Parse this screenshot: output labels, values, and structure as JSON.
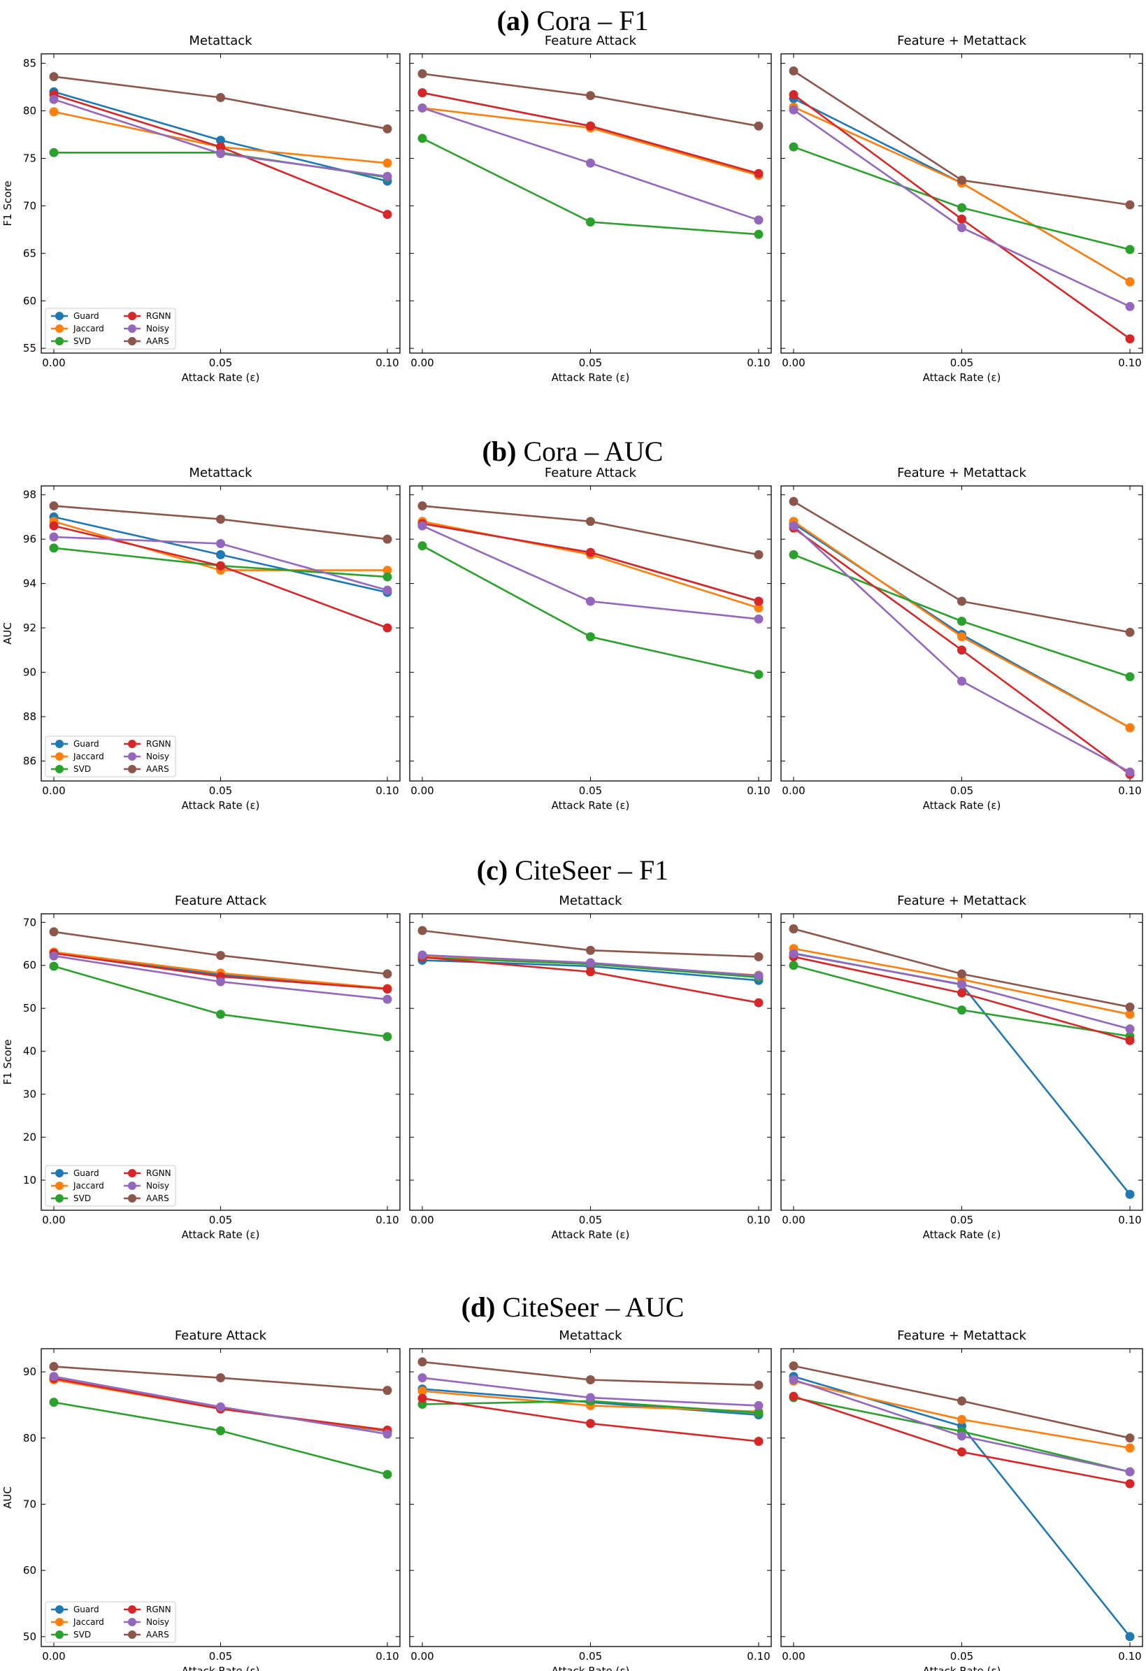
{
  "colors": {
    "Guard": "#1f77b4",
    "Jaccard": "#ff7f0e",
    "SVD": "#2ca02c",
    "RGNN": "#d62728",
    "Noisy": "#9467bd",
    "AARS": "#8c564b"
  },
  "legend_order": [
    "Guard",
    "Jaccard",
    "SVD",
    "RGNN",
    "Noisy",
    "AARS"
  ],
  "chart_data": [
    {
      "section": "a",
      "tag": "(a)",
      "title": "Cora – F1",
      "ylabel": "F1 Score",
      "ylim": [
        54.5,
        86
      ],
      "yticks": [
        55,
        60,
        65,
        70,
        75,
        80,
        85
      ],
      "xlabel": "Attack Rate (ε)",
      "x": [
        0.0,
        0.05,
        0.1
      ],
      "xtick_labels": [
        "0.00",
        "0.05",
        "0.10"
      ],
      "panels": [
        {
          "title": "Metattack",
          "type": "line",
          "series": [
            {
              "name": "Guard",
              "values": [
                82.0,
                76.9,
                72.6
              ]
            },
            {
              "name": "Jaccard",
              "values": [
                79.9,
                76.2,
                74.5
              ]
            },
            {
              "name": "SVD",
              "values": [
                75.6,
                75.6,
                73.0
              ]
            },
            {
              "name": "RGNN",
              "values": [
                81.7,
                76.2,
                69.1
              ]
            },
            {
              "name": "Noisy",
              "values": [
                81.2,
                75.5,
                73.1
              ]
            },
            {
              "name": "AARS",
              "values": [
                83.6,
                81.4,
                78.1
              ]
            }
          ]
        },
        {
          "title": "Feature Attack",
          "type": "line",
          "series": [
            {
              "name": "Guard",
              "values": [
                81.9,
                78.4,
                73.3
              ]
            },
            {
              "name": "Jaccard",
              "values": [
                80.3,
                78.2,
                73.2
              ]
            },
            {
              "name": "SVD",
              "values": [
                77.1,
                68.3,
                67.0
              ]
            },
            {
              "name": "RGNN",
              "values": [
                81.9,
                78.4,
                73.4
              ]
            },
            {
              "name": "Noisy",
              "values": [
                80.3,
                74.5,
                68.5
              ]
            },
            {
              "name": "AARS",
              "values": [
                83.9,
                81.6,
                78.4
              ]
            }
          ]
        },
        {
          "title": "Feature + Metattack",
          "type": "line",
          "series": [
            {
              "name": "Guard",
              "values": [
                81.3,
                72.4,
                62.0
              ]
            },
            {
              "name": "Jaccard",
              "values": [
                80.4,
                72.4,
                62.0
              ]
            },
            {
              "name": "SVD",
              "values": [
                76.2,
                69.8,
                65.4
              ]
            },
            {
              "name": "RGNN",
              "values": [
                81.7,
                68.6,
                56.0
              ]
            },
            {
              "name": "Noisy",
              "values": [
                80.1,
                67.7,
                59.4
              ]
            },
            {
              "name": "AARS",
              "values": [
                84.2,
                72.7,
                70.1
              ]
            }
          ]
        }
      ]
    },
    {
      "section": "b",
      "tag": "(b)",
      "title": "Cora – AUC",
      "ylabel": "AUC",
      "ylim": [
        85.1,
        98.4
      ],
      "yticks": [
        86,
        88,
        90,
        92,
        94,
        96,
        98
      ],
      "xlabel": "Attack Rate (ε)",
      "x": [
        0.0,
        0.05,
        0.1
      ],
      "xtick_labels": [
        "0.00",
        "0.05",
        "0.10"
      ],
      "panels": [
        {
          "title": "Metattack",
          "type": "line",
          "series": [
            {
              "name": "Guard",
              "values": [
                97.0,
                95.3,
                93.6
              ]
            },
            {
              "name": "Jaccard",
              "values": [
                96.8,
                94.6,
                94.6
              ]
            },
            {
              "name": "SVD",
              "values": [
                95.6,
                94.8,
                94.3
              ]
            },
            {
              "name": "RGNN",
              "values": [
                96.6,
                94.8,
                92.0
              ]
            },
            {
              "name": "Noisy",
              "values": [
                96.1,
                95.8,
                93.7
              ]
            },
            {
              "name": "AARS",
              "values": [
                97.5,
                96.9,
                96.0
              ]
            }
          ]
        },
        {
          "title": "Feature Attack",
          "type": "line",
          "series": [
            {
              "name": "Guard",
              "values": [
                96.7,
                95.4,
                93.2
              ]
            },
            {
              "name": "Jaccard",
              "values": [
                96.8,
                95.3,
                92.9
              ]
            },
            {
              "name": "SVD",
              "values": [
                95.7,
                91.6,
                89.9
              ]
            },
            {
              "name": "RGNN",
              "values": [
                96.7,
                95.4,
                93.2
              ]
            },
            {
              "name": "Noisy",
              "values": [
                96.6,
                93.2,
                92.4
              ]
            },
            {
              "name": "AARS",
              "values": [
                97.5,
                96.8,
                95.3
              ]
            }
          ]
        },
        {
          "title": "Feature + Metattack",
          "type": "line",
          "series": [
            {
              "name": "Guard",
              "values": [
                96.7,
                91.7,
                87.5
              ]
            },
            {
              "name": "Jaccard",
              "values": [
                96.8,
                91.6,
                87.5
              ]
            },
            {
              "name": "SVD",
              "values": [
                95.3,
                92.3,
                89.8
              ]
            },
            {
              "name": "RGNN",
              "values": [
                96.5,
                91.0,
                85.4
              ]
            },
            {
              "name": "Noisy",
              "values": [
                96.6,
                89.6,
                85.5
              ]
            },
            {
              "name": "AARS",
              "values": [
                97.7,
                93.2,
                91.8
              ]
            }
          ]
        }
      ]
    },
    {
      "section": "c",
      "tag": "(c)",
      "title": "CiteSeer – F1",
      "ylabel": "F1 Score",
      "ylim": [
        3,
        72
      ],
      "yticks": [
        10,
        20,
        30,
        40,
        50,
        60,
        70
      ],
      "xlabel": "Attack Rate (ε)",
      "x": [
        0.0,
        0.05,
        0.1
      ],
      "xtick_labels": [
        "0.00",
        "0.05",
        "0.10"
      ],
      "panels": [
        {
          "title": "Feature Attack",
          "type": "line",
          "series": [
            {
              "name": "Guard",
              "values": [
                62.8,
                57.8,
                54.5
              ]
            },
            {
              "name": "Jaccard",
              "values": [
                63.1,
                58.2,
                54.6
              ]
            },
            {
              "name": "SVD",
              "values": [
                59.8,
                48.6,
                43.4
              ]
            },
            {
              "name": "RGNN",
              "values": [
                62.8,
                57.4,
                54.5
              ]
            },
            {
              "name": "Noisy",
              "values": [
                62.2,
                56.2,
                52.1
              ]
            },
            {
              "name": "AARS",
              "values": [
                67.8,
                62.3,
                58.0
              ]
            }
          ]
        },
        {
          "title": "Metattack",
          "type": "line",
          "series": [
            {
              "name": "Guard",
              "values": [
                61.2,
                59.8,
                56.5
              ]
            },
            {
              "name": "Jaccard",
              "values": [
                62.0,
                60.3,
                57.7
              ]
            },
            {
              "name": "SVD",
              "values": [
                61.8,
                60.3,
                57.2
              ]
            },
            {
              "name": "RGNN",
              "values": [
                61.9,
                58.5,
                51.3
              ]
            },
            {
              "name": "Noisy",
              "values": [
                62.4,
                60.6,
                57.6
              ]
            },
            {
              "name": "AARS",
              "values": [
                68.1,
                63.5,
                62.0
              ]
            }
          ]
        },
        {
          "title": "Feature + Metattack",
          "type": "line",
          "series": [
            {
              "name": "Guard",
              "values": [
                62.8,
                55.5,
                6.7
              ]
            },
            {
              "name": "Jaccard",
              "values": [
                63.9,
                56.7,
                48.6
              ]
            },
            {
              "name": "SVD",
              "values": [
                60.0,
                49.6,
                43.5
              ]
            },
            {
              "name": "RGNN",
              "values": [
                62.0,
                53.6,
                42.5
              ]
            },
            {
              "name": "Noisy",
              "values": [
                62.7,
                55.6,
                45.2
              ]
            },
            {
              "name": "AARS",
              "values": [
                68.5,
                58.0,
                50.3
              ]
            }
          ]
        }
      ]
    },
    {
      "section": "d",
      "tag": "(d)",
      "title": "CiteSeer – AUC",
      "ylabel": "AUC",
      "ylim": [
        48.5,
        93.5
      ],
      "yticks": [
        50,
        60,
        70,
        80,
        90
      ],
      "xlabel": "Attack Rate (ε)",
      "x": [
        0.0,
        0.05,
        0.1
      ],
      "xtick_labels": [
        "0.00",
        "0.05",
        "0.10"
      ],
      "panels": [
        {
          "title": "Feature Attack",
          "type": "line",
          "series": [
            {
              "name": "Guard",
              "values": [
                89.0,
                84.4,
                81.0
              ]
            },
            {
              "name": "Jaccard",
              "values": [
                88.8,
                84.4,
                81.1
              ]
            },
            {
              "name": "SVD",
              "values": [
                85.4,
                81.1,
                74.5
              ]
            },
            {
              "name": "RGNN",
              "values": [
                89.0,
                84.4,
                81.2
              ]
            },
            {
              "name": "Noisy",
              "values": [
                89.3,
                84.7,
                80.6
              ]
            },
            {
              "name": "AARS",
              "values": [
                90.8,
                89.1,
                87.2
              ]
            }
          ]
        },
        {
          "title": "Metattack",
          "type": "line",
          "series": [
            {
              "name": "Guard",
              "values": [
                87.4,
                85.4,
                83.5
              ]
            },
            {
              "name": "Jaccard",
              "values": [
                87.1,
                84.9,
                84.0
              ]
            },
            {
              "name": "SVD",
              "values": [
                85.1,
                85.6,
                83.8
              ]
            },
            {
              "name": "RGNN",
              "values": [
                86.0,
                82.2,
                79.5
              ]
            },
            {
              "name": "Noisy",
              "values": [
                89.1,
                86.1,
                84.9
              ]
            },
            {
              "name": "AARS",
              "values": [
                91.5,
                88.8,
                88.0
              ]
            }
          ]
        },
        {
          "title": "Feature + Metattack",
          "type": "line",
          "series": [
            {
              "name": "Guard",
              "values": [
                89.3,
                81.8,
                50.0
              ]
            },
            {
              "name": "Jaccard",
              "values": [
                88.6,
                82.8,
                78.5
              ]
            },
            {
              "name": "SVD",
              "values": [
                86.1,
                81.0,
                74.9
              ]
            },
            {
              "name": "RGNN",
              "values": [
                86.3,
                77.9,
                73.1
              ]
            },
            {
              "name": "Noisy",
              "values": [
                88.8,
                80.3,
                74.9
              ]
            },
            {
              "name": "AARS",
              "values": [
                90.9,
                85.6,
                80.0
              ]
            }
          ]
        }
      ]
    }
  ]
}
